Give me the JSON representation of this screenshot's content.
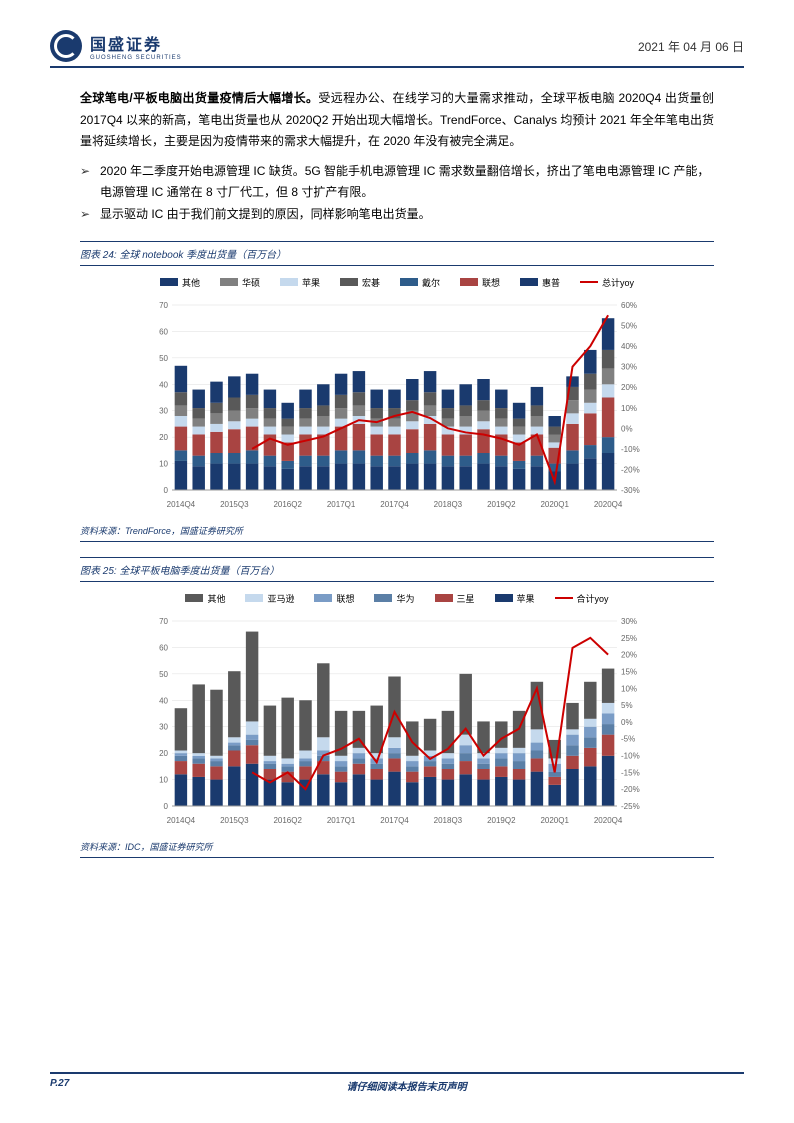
{
  "header": {
    "company": "国盛证券",
    "sub": "GUOSHENG SECURITIES",
    "date": "2021 年 04 月 06 日"
  },
  "body": {
    "p1_bold": "全球笔电/平板电脑出货量疫情后大幅增长。",
    "p1": "受远程办公、在线学习的大量需求推动，全球平板电脑 2020Q4 出货量创 2017Q4 以来的新高，笔电出货量也从 2020Q2 开始出现大幅增长。TrendForce、Canalys 均预计 2021 年全年笔电出货量将延续增长，主要是因为疫情带来的需求大幅提升，在 2020 年没有被完全满足。",
    "b1": "2020 年二季度开始电源管理 IC 缺货。5G 智能手机电源管理 IC 需求数量翻倍增长，挤出了笔电电源管理 IC 产能，电源管理 IC 通常在 8 寸厂代工，但 8 寸扩产有限。",
    "b2": "显示驱动 IC 由于我们前文提到的原因，同样影响笔电出货量。"
  },
  "chart24": {
    "title": "图表 24: 全球 notebook 季度出货量（百万台）",
    "source": "资料来源：TrendForce，国盛证券研究所",
    "legend": [
      {
        "label": "其他",
        "color": "#1a3a6e"
      },
      {
        "label": "华硕",
        "color": "#808080"
      },
      {
        "label": "苹果",
        "color": "#c5d9ed"
      },
      {
        "label": "宏碁",
        "color": "#595959"
      },
      {
        "label": "戴尔",
        "color": "#2e5c8a"
      },
      {
        "label": "联想",
        "color": "#a94442"
      },
      {
        "label": "惠普",
        "color": "#1a3a6e"
      },
      {
        "label": "总计yoy",
        "color": "#cc0000",
        "line": true
      }
    ],
    "xlabels": [
      "2014Q4",
      "2015Q3",
      "2016Q2",
      "2017Q1",
      "2017Q4",
      "2018Q3",
      "2019Q2",
      "2020Q1",
      "2020Q4"
    ],
    "yleft": {
      "min": 0,
      "max": 70,
      "step": 10
    },
    "yright": {
      "min": -30,
      "max": 60,
      "step": 10,
      "fmt": "%"
    },
    "n": 25,
    "stacks": [
      [
        11,
        4,
        9,
        4,
        4,
        5,
        10
      ],
      [
        9,
        4,
        8,
        3,
        3,
        4,
        7
      ],
      [
        10,
        4,
        8,
        3,
        4,
        4,
        8
      ],
      [
        10,
        4,
        9,
        3,
        4,
        5,
        8
      ],
      [
        10,
        5,
        9,
        3,
        4,
        5,
        8
      ],
      [
        9,
        4,
        8,
        3,
        3,
        4,
        7
      ],
      [
        8,
        3,
        7,
        3,
        3,
        3,
        6
      ],
      [
        9,
        4,
        8,
        3,
        3,
        4,
        7
      ],
      [
        9,
        4,
        8,
        3,
        4,
        4,
        8
      ],
      [
        10,
        5,
        9,
        3,
        4,
        5,
        8
      ],
      [
        10,
        5,
        10,
        3,
        4,
        5,
        8
      ],
      [
        9,
        4,
        8,
        3,
        3,
        4,
        7
      ],
      [
        9,
        4,
        8,
        3,
        3,
        4,
        7
      ],
      [
        10,
        4,
        9,
        3,
        4,
        4,
        8
      ],
      [
        10,
        5,
        10,
        3,
        4,
        5,
        8
      ],
      [
        9,
        4,
        8,
        3,
        3,
        4,
        7
      ],
      [
        9,
        4,
        8,
        3,
        4,
        4,
        8
      ],
      [
        10,
        4,
        9,
        3,
        4,
        4,
        8
      ],
      [
        9,
        4,
        8,
        3,
        3,
        4,
        7
      ],
      [
        8,
        3,
        7,
        3,
        3,
        3,
        6
      ],
      [
        9,
        4,
        8,
        3,
        4,
        4,
        7
      ],
      [
        7,
        3,
        6,
        2,
        3,
        3,
        4
      ],
      [
        10,
        5,
        10,
        4,
        5,
        5,
        4
      ],
      [
        12,
        5,
        12,
        4,
        5,
        6,
        9
      ],
      [
        14,
        6,
        15,
        5,
        6,
        7,
        12
      ]
    ],
    "stack_colors": [
      "#1a3a6e",
      "#2e5c8a",
      "#a94442",
      "#c5d9ed",
      "#808080",
      "#595959",
      "#1a3a6e"
    ],
    "yoy": [
      null,
      null,
      null,
      null,
      -10,
      -5,
      -8,
      -6,
      -4,
      0,
      4,
      3,
      6,
      8,
      5,
      0,
      -2,
      -3,
      -5,
      -8,
      -3,
      -26,
      30,
      40,
      55
    ],
    "line_color": "#cc0000",
    "bg": "#ffffff",
    "grid": "#dddddd"
  },
  "chart25": {
    "title": "图表 25: 全球平板电脑季度出货量（百万台）",
    "source": "资料来源：IDC，国盛证券研究所",
    "legend": [
      {
        "label": "其他",
        "color": "#595959"
      },
      {
        "label": "亚马逊",
        "color": "#c5d9ed"
      },
      {
        "label": "联想",
        "color": "#7a9cc6"
      },
      {
        "label": "华为",
        "color": "#5b7fa6"
      },
      {
        "label": "三星",
        "color": "#a94442"
      },
      {
        "label": "苹果",
        "color": "#1a3a6e"
      },
      {
        "label": "合计yoy",
        "color": "#cc0000",
        "line": true
      }
    ],
    "xlabels": [
      "2014Q4",
      "2015Q3",
      "2016Q2",
      "2017Q1",
      "2017Q4",
      "2018Q3",
      "2019Q2",
      "2020Q1",
      "2020Q4"
    ],
    "yleft": {
      "min": 0,
      "max": 70,
      "step": 10
    },
    "yright": {
      "min": -25,
      "max": 30,
      "step": 5,
      "fmt": "%"
    },
    "n": 25,
    "stacks": [
      [
        12,
        5,
        2,
        1,
        1,
        16
      ],
      [
        11,
        5,
        2,
        1,
        1,
        26
      ],
      [
        10,
        5,
        2,
        1,
        1,
        25
      ],
      [
        15,
        6,
        2,
        1,
        2,
        25
      ],
      [
        16,
        7,
        2,
        2,
        5,
        34
      ],
      [
        10,
        4,
        2,
        1,
        2,
        19
      ],
      [
        9,
        4,
        2,
        1,
        2,
        23
      ],
      [
        10,
        5,
        2,
        1,
        3,
        19
      ],
      [
        12,
        5,
        2,
        2,
        5,
        28
      ],
      [
        9,
        4,
        2,
        2,
        2,
        17
      ],
      [
        12,
        4,
        2,
        2,
        2,
        14
      ],
      [
        10,
        4,
        2,
        2,
        2,
        18
      ],
      [
        13,
        5,
        2,
        2,
        4,
        23
      ],
      [
        9,
        4,
        2,
        2,
        2,
        13
      ],
      [
        11,
        4,
        2,
        2,
        2,
        12
      ],
      [
        10,
        4,
        2,
        2,
        2,
        16
      ],
      [
        12,
        5,
        3,
        3,
        4,
        23
      ],
      [
        10,
        4,
        2,
        2,
        2,
        12
      ],
      [
        11,
        4,
        3,
        2,
        2,
        10
      ],
      [
        10,
        4,
        3,
        3,
        2,
        14
      ],
      [
        13,
        5,
        3,
        3,
        5,
        18
      ],
      [
        8,
        3,
        2,
        3,
        2,
        7
      ],
      [
        14,
        5,
        4,
        4,
        2,
        10
      ],
      [
        15,
        7,
        4,
        4,
        3,
        14
      ],
      [
        19,
        8,
        4,
        4,
        4,
        13
      ]
    ],
    "stack_colors": [
      "#1a3a6e",
      "#a94442",
      "#5b7fa6",
      "#7a9cc6",
      "#c5d9ed",
      "#595959"
    ],
    "yoy": [
      null,
      null,
      null,
      null,
      -15,
      -18,
      -15,
      -20,
      -10,
      -8,
      -5,
      -12,
      3,
      -6,
      -11,
      -8,
      -2,
      -10,
      -5,
      -2,
      10,
      -15,
      22,
      25,
      20
    ],
    "line_color": "#cc0000",
    "bg": "#ffffff",
    "grid": "#dddddd"
  },
  "footer": {
    "page": "P.27",
    "text": "请仔细阅读本报告末页声明"
  }
}
